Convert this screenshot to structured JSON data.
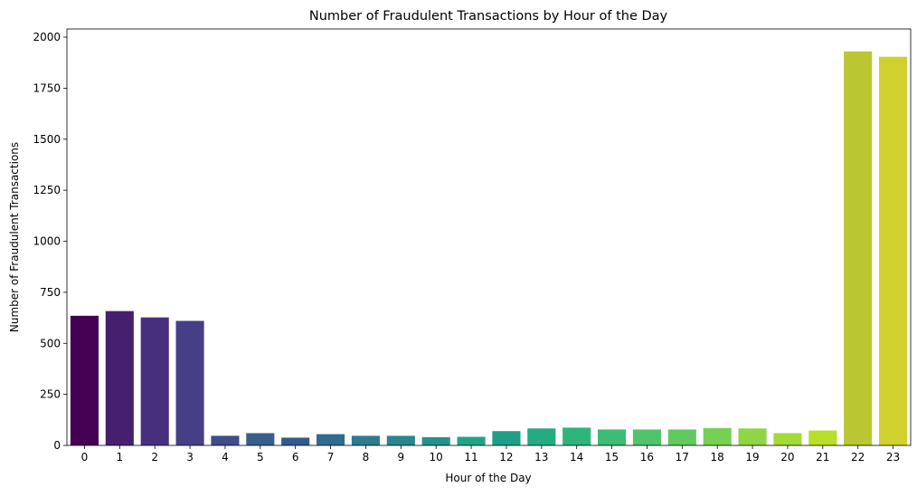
{
  "chart_data": {
    "type": "bar",
    "title": "Number of Fraudulent Transactions by Hour of the Day",
    "xlabel": "Hour of the Day",
    "ylabel": "Number of Fraudulent Transactions",
    "categories": [
      "0",
      "1",
      "2",
      "3",
      "4",
      "5",
      "6",
      "7",
      "8",
      "9",
      "10",
      "11",
      "12",
      "13",
      "14",
      "15",
      "16",
      "17",
      "18",
      "19",
      "20",
      "21",
      "22",
      "23"
    ],
    "values": [
      635,
      658,
      627,
      610,
      47,
      60,
      38,
      55,
      47,
      47,
      40,
      42,
      70,
      83,
      87,
      78,
      78,
      78,
      85,
      83,
      60,
      73,
      1930,
      1904
    ],
    "ylim": [
      0,
      2040
    ],
    "yticks": [
      0,
      250,
      500,
      750,
      1000,
      1250,
      1500,
      1750,
      2000
    ],
    "grid": false,
    "legend": "none",
    "colors": [
      "#440154",
      "#46206f",
      "#482f7d",
      "#463f86",
      "#3f4d8a",
      "#3a5e8c",
      "#345a8b",
      "#2f6b8e",
      "#2e7a8e",
      "#29858e",
      "#24918c",
      "#20a386",
      "#1f9f88",
      "#25aa82",
      "#2fb47c",
      "#3cbc74",
      "#50c46a",
      "#61c960",
      "#75d054",
      "#8ed645",
      "#a2da37",
      "#b8de29",
      "#bac732",
      "#d0d12f"
    ]
  }
}
